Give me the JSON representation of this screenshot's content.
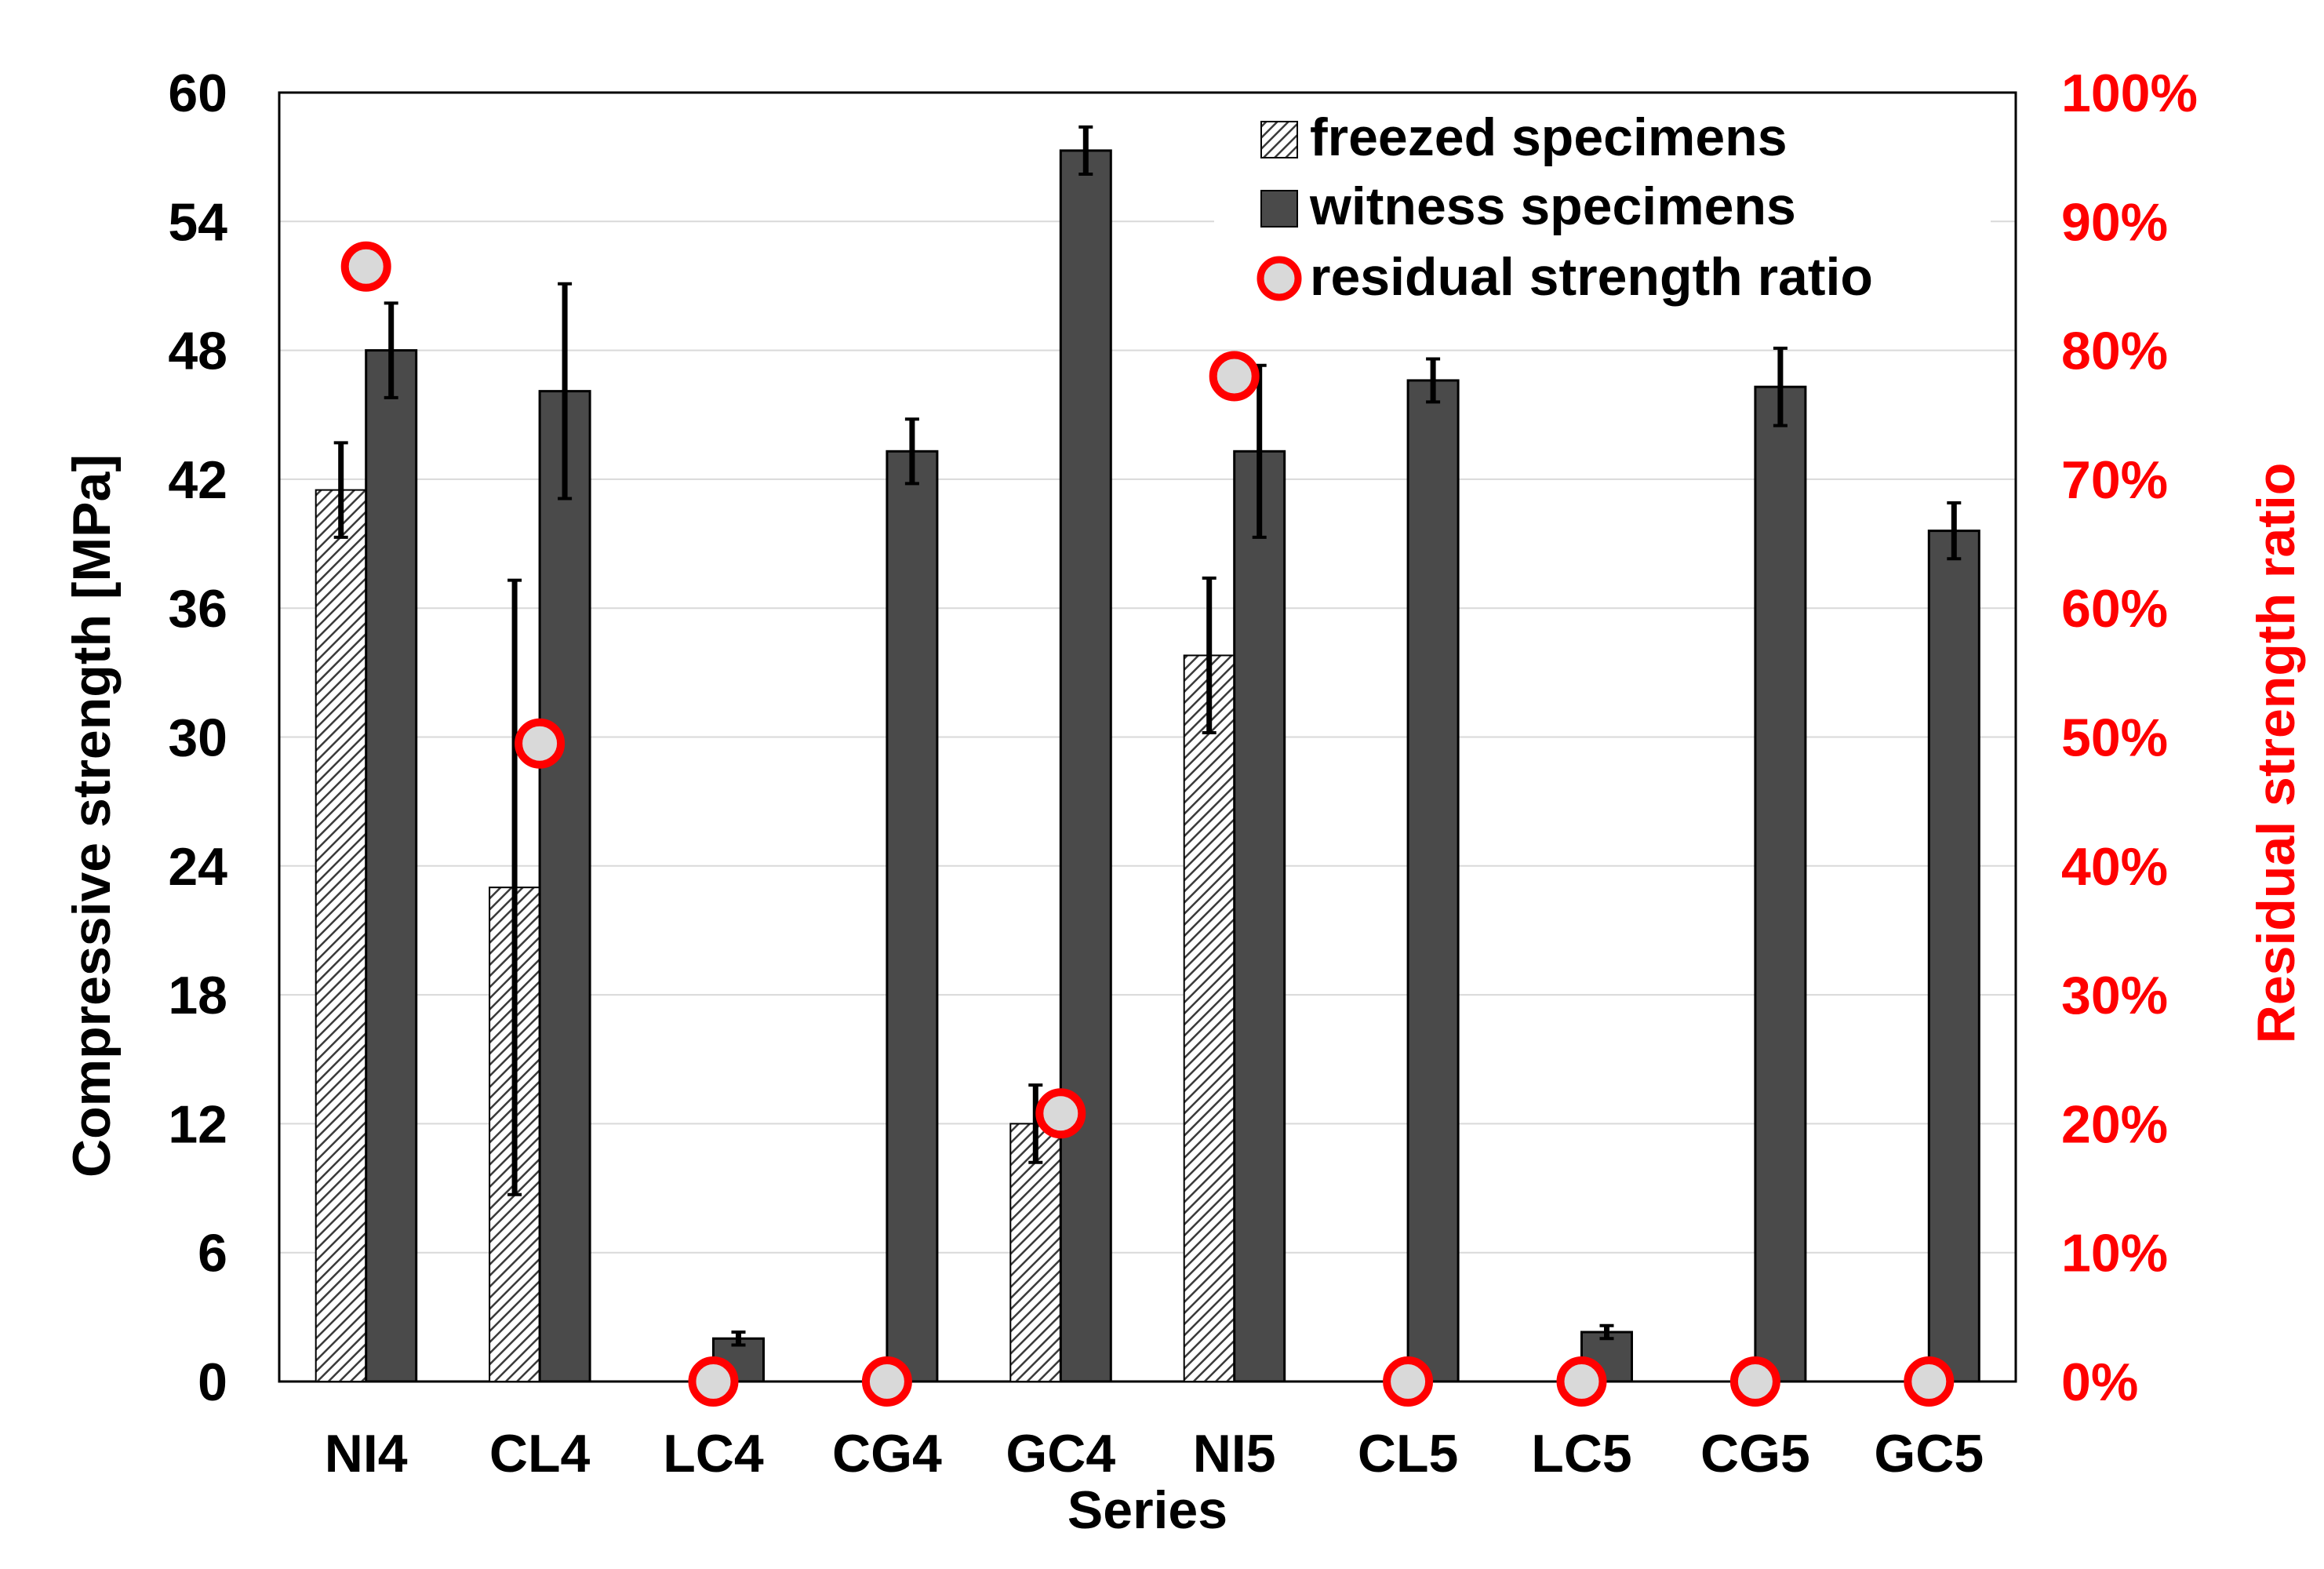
{
  "chart_data": {
    "type": "bar",
    "title": "",
    "xlabel": "Series",
    "ylabel": "Compressive strength [MPa]",
    "y2label": "Residual strength ratio",
    "ylim": [
      0,
      60
    ],
    "y2lim": [
      0,
      1
    ],
    "yticks": [
      "0",
      "6",
      "12",
      "18",
      "24",
      "30",
      "36",
      "42",
      "48",
      "54",
      "60"
    ],
    "y2ticks": [
      "0%",
      "10%",
      "20%",
      "30%",
      "40%",
      "50%",
      "60%",
      "70%",
      "80%",
      "90%",
      "100%"
    ],
    "grid": true,
    "legend_position": "top-right",
    "categories": [
      "NI4",
      "CL4",
      "LC4",
      "CG4",
      "GC4",
      "NI5",
      "CL5",
      "LC5",
      "CG5",
      "GC5"
    ],
    "series": [
      {
        "name": "freezed specimens",
        "kind": "bar",
        "pattern": "hatched",
        "values": [
          41.5,
          23.0,
          0,
          0,
          12.0,
          33.8,
          0,
          0,
          0,
          0
        ],
        "errors": [
          2.2,
          14.3,
          0,
          0,
          1.8,
          3.6,
          0,
          0,
          0,
          0
        ]
      },
      {
        "name": "witness specimens",
        "kind": "bar",
        "pattern": "solid",
        "values": [
          48.0,
          46.1,
          2.0,
          43.3,
          57.3,
          43.3,
          46.6,
          2.3,
          46.3,
          39.6
        ],
        "errors": [
          2.2,
          5.0,
          0.3,
          1.5,
          1.1,
          4.0,
          1.0,
          0.3,
          1.8,
          1.3
        ]
      },
      {
        "name": "residual strength ratio",
        "kind": "marker",
        "axis": "right",
        "values": [
          0.865,
          0.495,
          0,
          0,
          0.208,
          0.78,
          0,
          0,
          0,
          0
        ]
      }
    ],
    "colors": {
      "bar_solid": "#4a4a4a",
      "bar_hatch": "#3a3a3a",
      "grid": "#d9d9d9",
      "marker_edge": "#ff0000",
      "marker_fill": "#d9d9d9",
      "right_axis": "#ff0000",
      "text": "#000000"
    }
  }
}
